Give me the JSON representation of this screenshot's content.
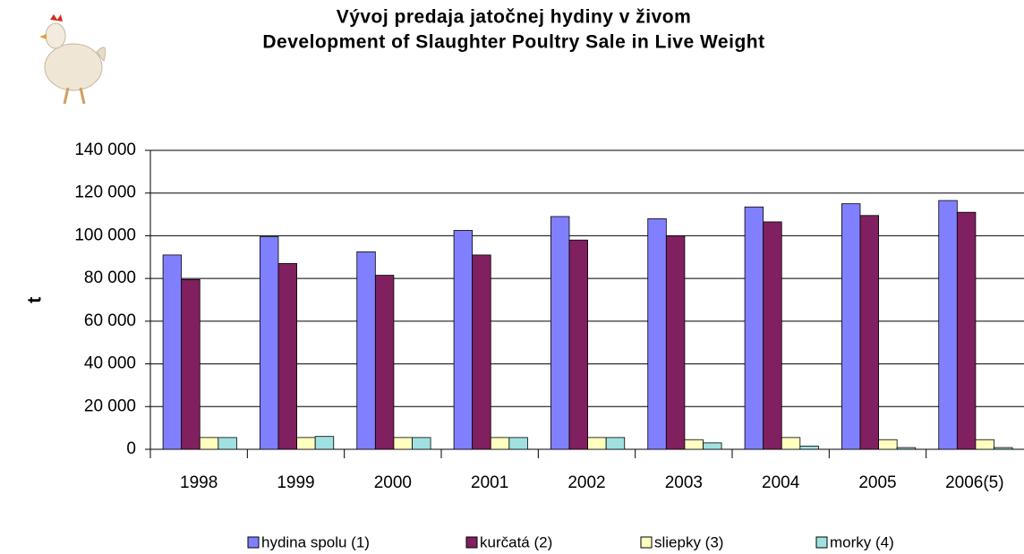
{
  "chart_data": {
    "type": "bar",
    "title": "Vývoj predaja jatočnej hydiny v živom",
    "subtitle": "Development of Slaughter Poultry Sale in Live Weight",
    "y_label": "t",
    "categories": [
      "1998",
      "1999",
      "2000",
      "2001",
      "2002",
      "2003",
      "2004",
      "2005",
      "2006(5)"
    ],
    "series": [
      {
        "name": "hydina spolu (1)",
        "color": "#8080ff",
        "values": [
          91000,
          99500,
          92500,
          102500,
          109000,
          108000,
          113500,
          115000,
          116500
        ]
      },
      {
        "name": "kurčatá (2)",
        "color": "#802060",
        "values": [
          79500,
          87000,
          81500,
          91000,
          98000,
          100000,
          106500,
          109500,
          111000
        ]
      },
      {
        "name": "sliepky (3)",
        "color": "#ffffc0",
        "values": [
          5500,
          5500,
          5500,
          5500,
          5500,
          4500,
          5500,
          4500,
          4500
        ]
      },
      {
        "name": "morky (4)",
        "color": "#a0e0e0",
        "values": [
          5500,
          6000,
          5500,
          5500,
          5500,
          3000,
          1500,
          800,
          800
        ]
      }
    ],
    "ylim": [
      0,
      140000
    ],
    "yticks": [
      0,
      {
        "value": 20000,
        "label": "20 000"
      },
      {
        "value": 40000,
        "label": "40 000"
      },
      {
        "value": 60000,
        "label": "60 000"
      },
      {
        "value": 80000,
        "label": "80 000"
      },
      {
        "value": 100000,
        "label": "100 000"
      },
      {
        "value": 120000,
        "label": "120 000"
      },
      {
        "value": 140000,
        "label": "140 000"
      }
    ],
    "grid": true,
    "legend": "bottom"
  }
}
